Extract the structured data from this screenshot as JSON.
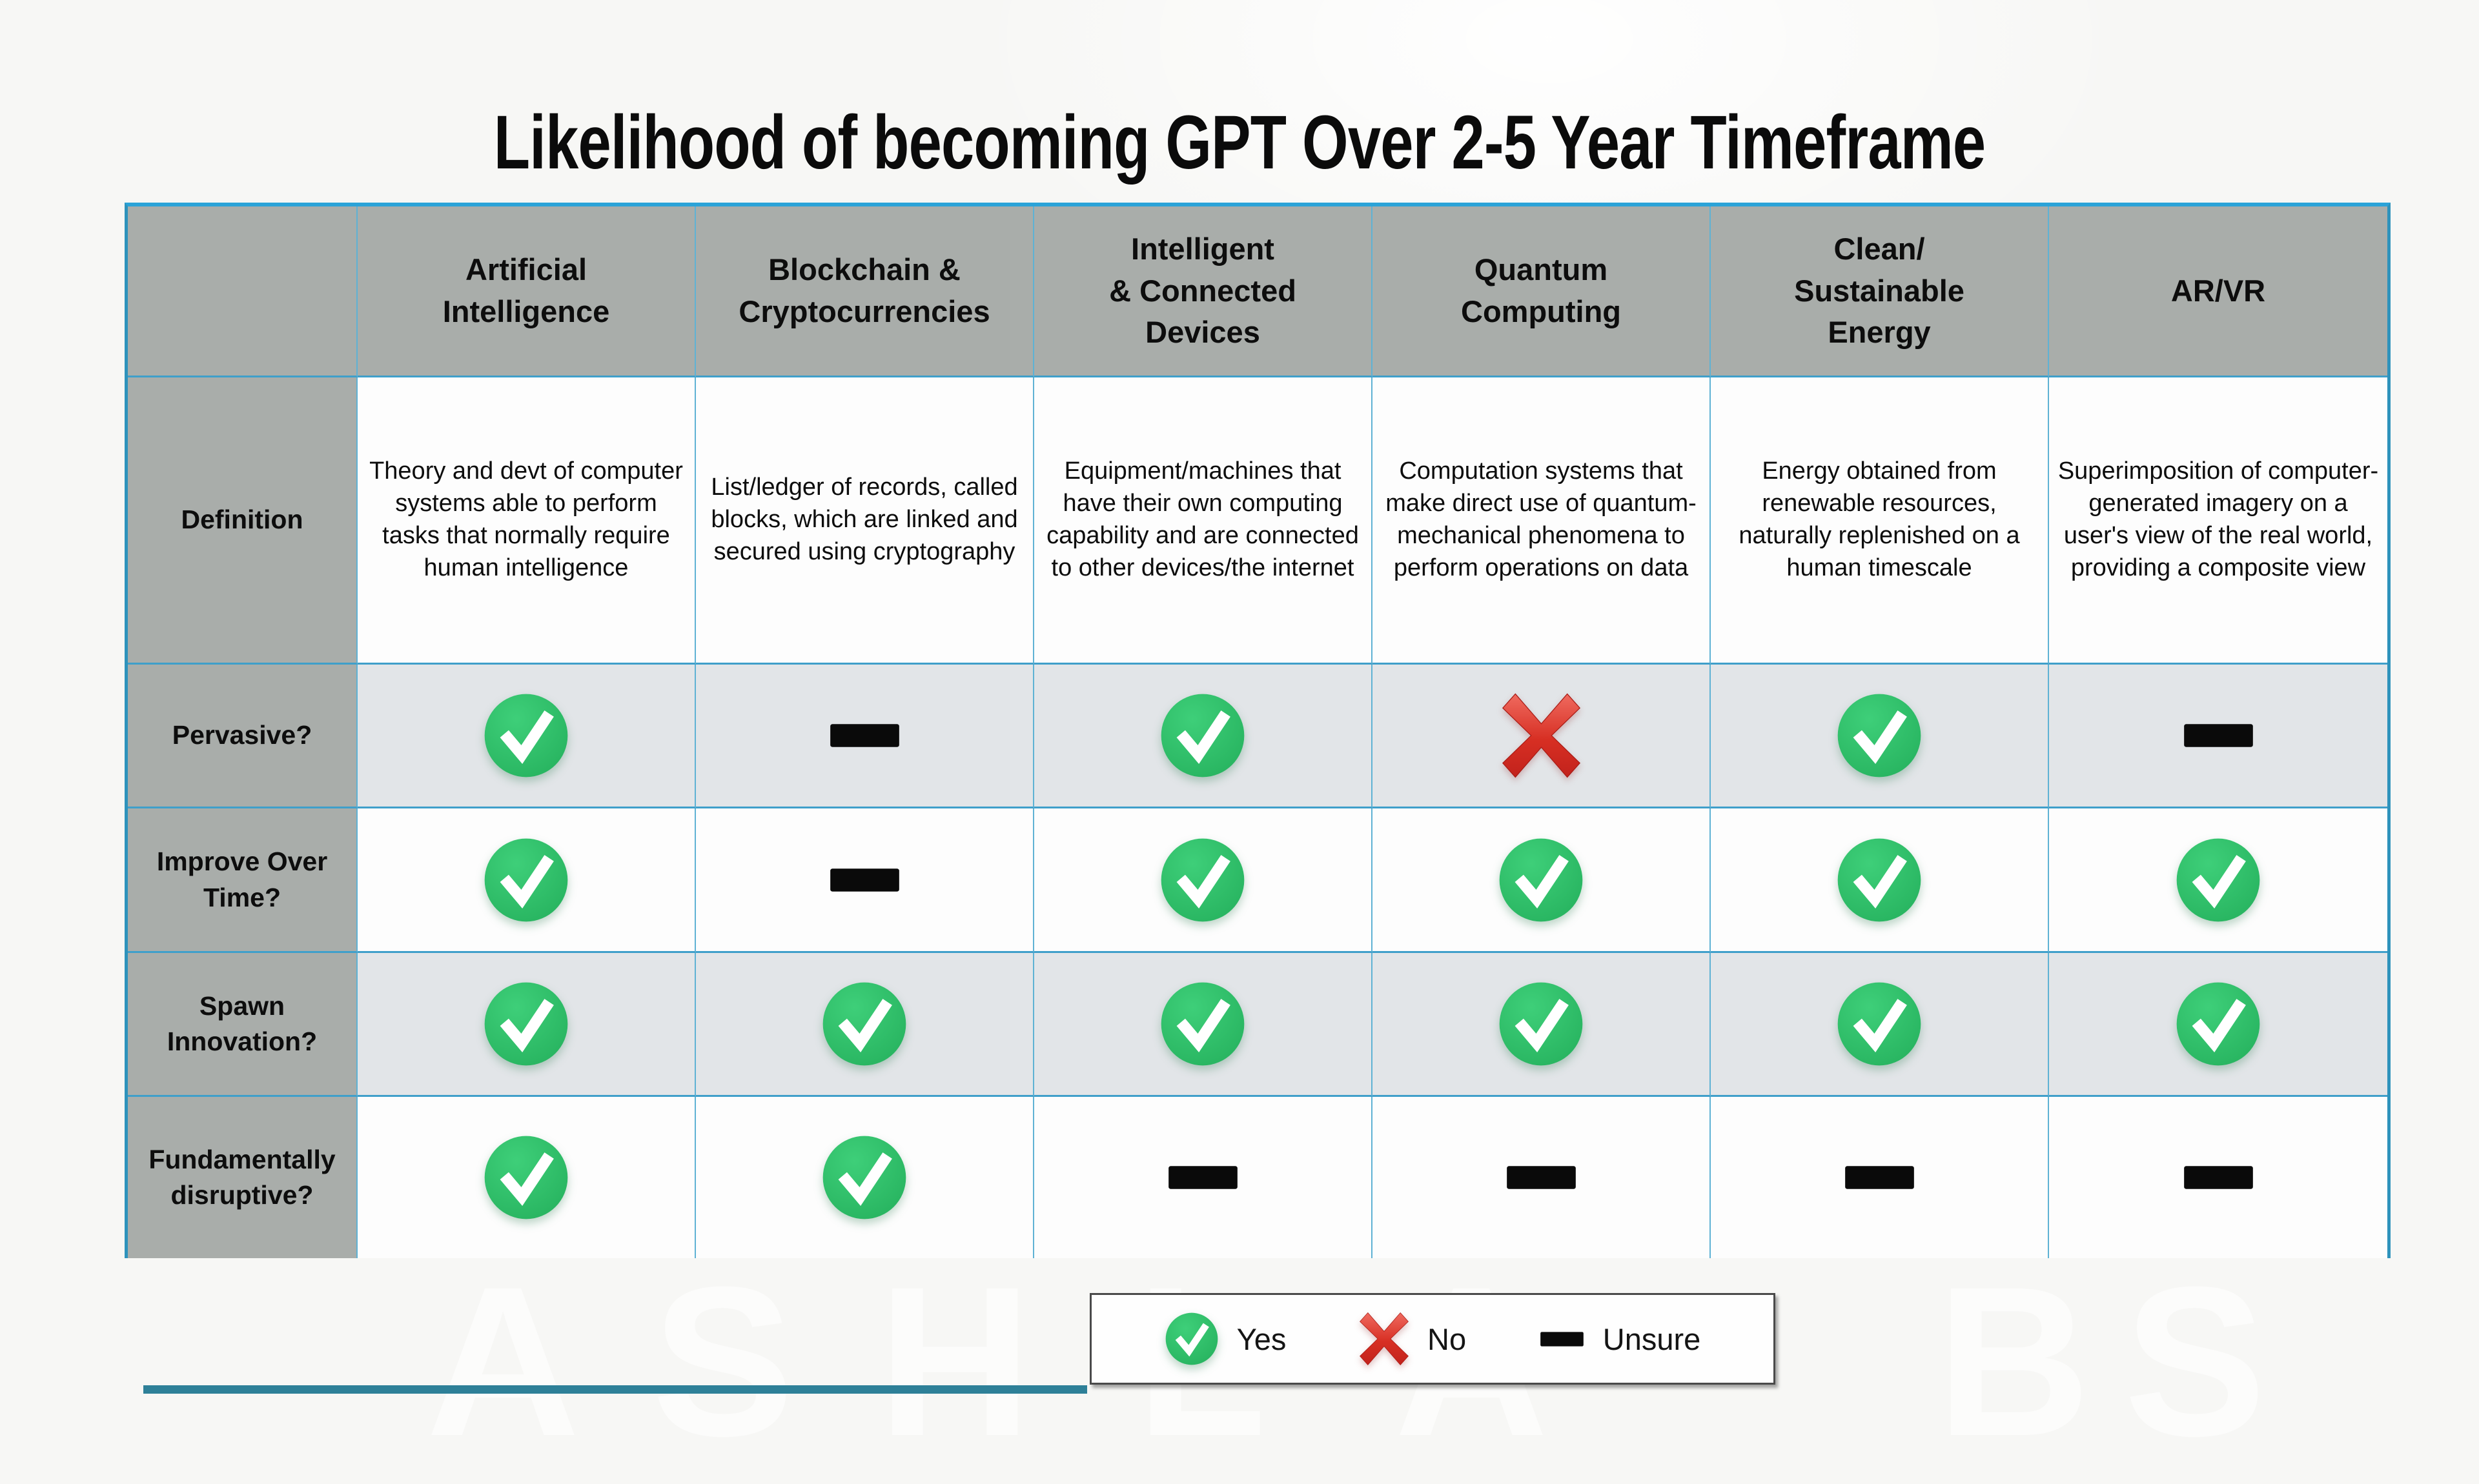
{
  "title": "Likelihood of becoming GPT Over 2-5 Year Timeframe",
  "table": {
    "corner_label": "",
    "columns": [
      "Artificial\nIntelligence",
      "Blockchain &\nCryptocurrencies",
      "Intelligent\n& Connected\nDevices",
      "Quantum\nComputing",
      "Clean/\nSustainable\nEnergy",
      "AR/VR"
    ],
    "rows": [
      {
        "label": "Definition",
        "type": "text",
        "cells": [
          "Theory and devt of computer systems able to perform tasks that normally require human intelligence",
          "List/ledger of records, called blocks, which are linked and secured using cryptography",
          "Equipment/machines that have their own computing capability and are connected to other devices/the internet",
          "Computation systems that make direct use of quantum-mechanical phenomena to perform operations on data",
          "Energy obtained from renewable resources, naturally replenished on a human timescale",
          "Superimposition of computer-generated imagery on a user's view of the real world, providing a composite view"
        ]
      },
      {
        "label": "Pervasive?",
        "type": "icons",
        "cells": [
          "yes",
          "unsure",
          "yes",
          "no",
          "yes",
          "unsure"
        ]
      },
      {
        "label": "Improve Over\nTime?",
        "type": "icons",
        "cells": [
          "yes",
          "unsure",
          "yes",
          "yes",
          "yes",
          "yes"
        ]
      },
      {
        "label": "Spawn\nInnovation?",
        "type": "icons",
        "cells": [
          "yes",
          "yes",
          "yes",
          "yes",
          "yes",
          "yes"
        ]
      },
      {
        "label": "Fundamentally\ndisruptive?",
        "type": "icons",
        "cells": [
          "yes",
          "yes",
          "unsure",
          "unsure",
          "unsure",
          "unsure"
        ]
      }
    ]
  },
  "legend": {
    "items": [
      {
        "value": "yes",
        "label": "Yes"
      },
      {
        "value": "no",
        "label": "No"
      },
      {
        "value": "unsure",
        "label": "Unsure"
      }
    ]
  },
  "watermark_letters": [
    "A",
    "S",
    "H",
    "L",
    "A",
    "B",
    "S"
  ],
  "colors": {
    "header_bg": "#a9adaa",
    "row_alt_bg": "#e2e5e8",
    "row_bg": "#fdfdfd",
    "border_outer": "#2e93bc",
    "border_inner": "#5fb2d4",
    "check_green": "#2fbe69",
    "cross_red": "#d93025",
    "dash_black": "#0a0a0a",
    "bottom_bar_teal": "#2e8098"
  }
}
